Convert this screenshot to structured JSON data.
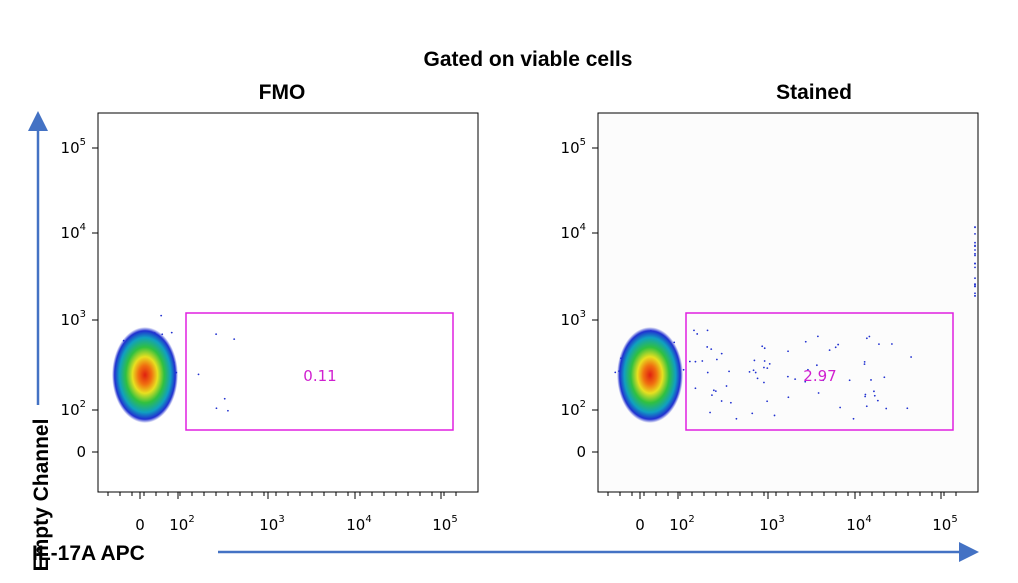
{
  "title": "Gated on viable cells",
  "x_label": "IL-17A APC",
  "y_label": "Empty Channel",
  "panels": [
    {
      "title": "FMO",
      "gate_label": "0.11"
    },
    {
      "title": "Stained",
      "gate_label": "2.97"
    }
  ],
  "y_ticks": [
    {
      "label": "10",
      "sup": "5"
    },
    {
      "label": "10",
      "sup": "4"
    },
    {
      "label": "10",
      "sup": "3"
    },
    {
      "label": "10",
      "sup": "2"
    },
    {
      "label": "0"
    }
  ],
  "x_ticks": [
    {
      "label": "0"
    },
    {
      "label": "10",
      "sup": "2"
    },
    {
      "label": "10",
      "sup": "3"
    },
    {
      "label": "10",
      "sup": "4"
    },
    {
      "label": "10",
      "sup": "5"
    }
  ]
}
